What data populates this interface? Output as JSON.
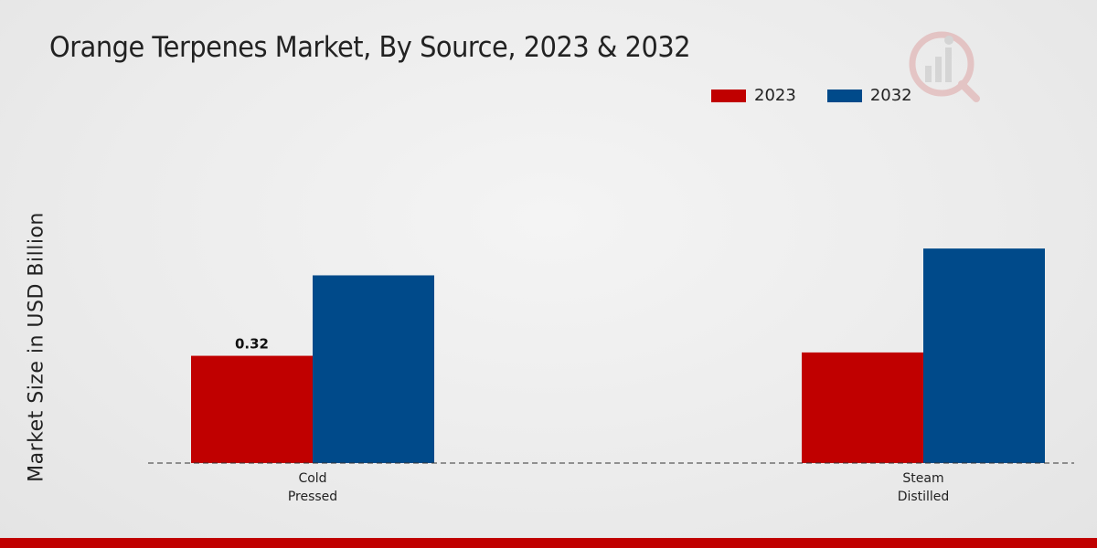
{
  "chart_data": {
    "type": "bar",
    "title": "Orange Terpenes Market, By Source, 2023 & 2032",
    "ylabel": "Market Size in USD Billion",
    "xlabel": "",
    "categories": [
      "Cold\nPressed",
      "Steam\nDistilled"
    ],
    "series": [
      {
        "name": "2023",
        "color": "#c00000",
        "values": [
          0.32,
          0.33
        ]
      },
      {
        "name": "2032",
        "color": "#004a8a",
        "values": [
          0.56,
          0.64
        ]
      }
    ],
    "data_labels": [
      {
        "series": 0,
        "index": 0,
        "text": "0.32"
      }
    ],
    "ylim": [
      0,
      1.0
    ],
    "legend": "top-right",
    "grid": false
  },
  "icons": {
    "watermark": "brand-logo-icon"
  },
  "colors": {
    "footer": "#c00000"
  }
}
